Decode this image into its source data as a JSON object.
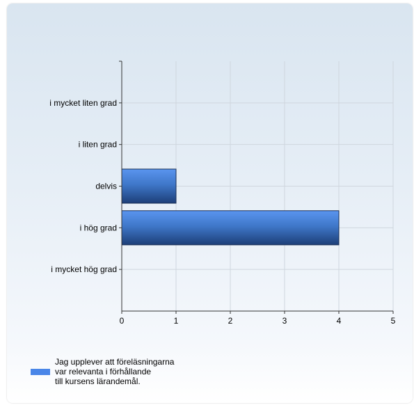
{
  "chart_data": {
    "type": "bar",
    "orientation": "horizontal",
    "categories": [
      "i mycket liten grad",
      "i liten grad",
      "delvis",
      "i hög grad",
      "i mycket hög grad"
    ],
    "series": [
      {
        "name": "Jag upplever att föreläsningarna var relevanta i förhållande till kursens lärandemål.",
        "values": [
          0,
          0,
          1,
          4,
          0
        ]
      }
    ],
    "xlim": [
      0,
      5
    ],
    "xticks": [
      0,
      1,
      2,
      3,
      4,
      5
    ],
    "grid": true,
    "legend_position": "bottom-left",
    "bar_color": "#4a86e8"
  },
  "legend": {
    "text": "Jag upplever att föreläsningarna\nvar relevanta i förhållande\ntill kursens lärandemål."
  }
}
